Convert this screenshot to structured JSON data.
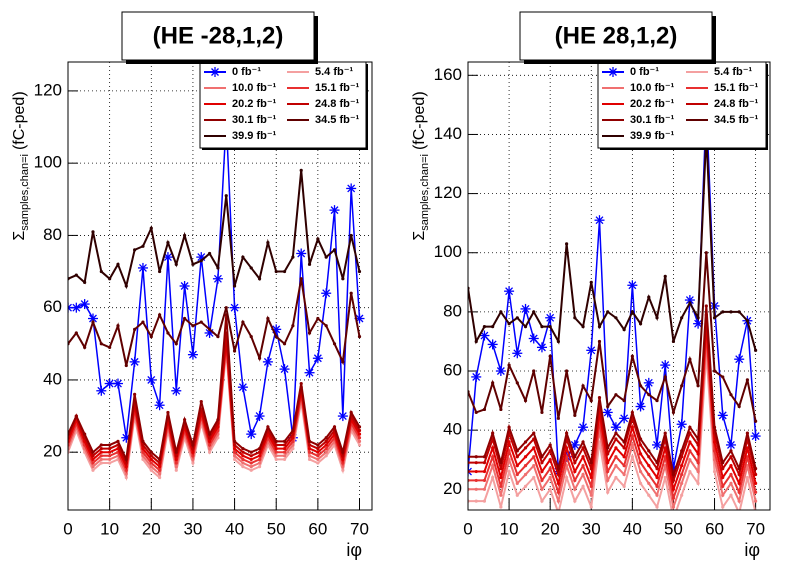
{
  "chart_data": [
    {
      "type": "line",
      "title": "(HE -28,1,2)",
      "ylabel": {
        "symbol": "Σ",
        "sub": "samples,chan=i",
        "unit": "(fC-ped)"
      },
      "xlabel": "iφ",
      "xlim": [
        0,
        73
      ],
      "ylim": [
        4,
        128
      ],
      "xticks": [
        0,
        10,
        20,
        30,
        40,
        50,
        60,
        70
      ],
      "yticks": [
        20,
        40,
        60,
        80,
        100,
        120
      ],
      "grid": true,
      "legend": "top-right",
      "x": [
        0,
        2,
        4,
        6,
        8,
        10,
        12,
        14,
        16,
        18,
        20,
        22,
        24,
        26,
        28,
        30,
        32,
        34,
        36,
        38,
        40,
        42,
        44,
        46,
        48,
        50,
        52,
        54,
        56,
        58,
        60,
        62,
        64,
        66,
        68,
        70
      ],
      "series": [
        {
          "name": "0 fb⁻¹",
          "color": "#0000ff",
          "values": [
            60,
            60,
            61,
            57,
            37,
            39,
            39,
            24,
            45,
            71,
            40,
            33,
            74,
            37,
            66,
            47,
            74,
            53,
            68,
            112,
            60,
            38,
            25,
            30,
            45,
            54,
            43,
            24,
            75,
            42,
            46,
            64,
            87,
            30,
            93,
            57
          ]
        },
        {
          "name": "5.4 fb⁻¹",
          "color": "#f4a0a0",
          "values": [
            20,
            26,
            20,
            15,
            17,
            17,
            18,
            13,
            30,
            18,
            15,
            13,
            26,
            15,
            24,
            17,
            28,
            20,
            24,
            48,
            18,
            16,
            15,
            16,
            22,
            18,
            18,
            21,
            34,
            18,
            17,
            19,
            22,
            15,
            26,
            22
          ]
        },
        {
          "name": "10.0 fb⁻¹",
          "color": "#f07070",
          "values": [
            21,
            27,
            21,
            16,
            18,
            18,
            19,
            14,
            31,
            19,
            16,
            14,
            27,
            16,
            25,
            18,
            29,
            21,
            25,
            49,
            19,
            17,
            16,
            17,
            23,
            19,
            19,
            22,
            35,
            19,
            18,
            20,
            23,
            16,
            27,
            23
          ]
        },
        {
          "name": "15.1 fb⁻¹",
          "color": "#e83030",
          "values": [
            22,
            28,
            22,
            17,
            19,
            19,
            20,
            15,
            32,
            20,
            17,
            15,
            28,
            17,
            26,
            19,
            30,
            22,
            26,
            50,
            20,
            18,
            17,
            18,
            24,
            20,
            20,
            23,
            36,
            20,
            19,
            21,
            24,
            17,
            28,
            24
          ]
        },
        {
          "name": "20.2 fb⁻¹",
          "color": "#e00000",
          "values": [
            23,
            29,
            23,
            18,
            20,
            20,
            21,
            16,
            33,
            21,
            18,
            16,
            29,
            18,
            27,
            20,
            31,
            23,
            27,
            51,
            21,
            19,
            18,
            19,
            25,
            21,
            21,
            24,
            37,
            21,
            20,
            22,
            25,
            18,
            29,
            25
          ]
        },
        {
          "name": "24.8 fb⁻¹",
          "color": "#c00000",
          "values": [
            24,
            30,
            24,
            19,
            21,
            21,
            22,
            17,
            34,
            22,
            19,
            17,
            30,
            19,
            28,
            21,
            32,
            24,
            28,
            53,
            22,
            20,
            19,
            20,
            26,
            22,
            22,
            25,
            38,
            22,
            21,
            23,
            26,
            19,
            30,
            26
          ]
        },
        {
          "name": "30.1 fb⁻¹",
          "color": "#900000",
          "values": [
            25,
            30,
            25,
            20,
            22,
            22,
            23,
            18,
            36,
            23,
            20,
            18,
            31,
            20,
            29,
            22,
            34,
            25,
            29,
            58,
            23,
            21,
            20,
            21,
            27,
            23,
            23,
            26,
            39,
            23,
            22,
            24,
            27,
            20,
            31,
            27
          ]
        },
        {
          "name": "34.5 fb⁻¹",
          "color": "#600000",
          "values": [
            50,
            53,
            49,
            56,
            50,
            49,
            55,
            44,
            54,
            56,
            52,
            58,
            53,
            50,
            57,
            55,
            56,
            54,
            52,
            60,
            48,
            56,
            52,
            46,
            57,
            52,
            50,
            55,
            68,
            53,
            57,
            55,
            50,
            45,
            64,
            52
          ]
        },
        {
          "name": "39.9 fb⁻¹",
          "color": "#300000",
          "values": [
            68,
            69,
            67,
            81,
            70,
            68,
            72,
            66,
            76,
            77,
            82,
            70,
            78,
            72,
            80,
            72,
            73,
            75,
            71,
            91,
            66,
            74,
            71,
            68,
            78,
            70,
            70,
            74,
            98,
            72,
            79,
            74,
            76,
            68,
            80,
            70
          ]
        }
      ]
    },
    {
      "type": "line",
      "title": "(HE 28,1,2)",
      "ylabel": {
        "symbol": "Σ",
        "sub": "samples,chan=i",
        "unit": "(fC-ped)"
      },
      "xlabel": "iφ",
      "xlim": [
        0,
        73.5
      ],
      "ylim": [
        13,
        164.5
      ],
      "xticks": [
        0,
        10,
        20,
        30,
        40,
        50,
        60,
        70
      ],
      "yticks": [
        20,
        40,
        60,
        80,
        100,
        120,
        140,
        160
      ],
      "grid": true,
      "legend": "top-right",
      "x": [
        0,
        2,
        4,
        6,
        8,
        10,
        12,
        14,
        16,
        18,
        20,
        22,
        24,
        26,
        28,
        30,
        32,
        34,
        36,
        38,
        40,
        42,
        44,
        46,
        48,
        50,
        52,
        54,
        56,
        58,
        60,
        62,
        64,
        66,
        68,
        70
      ],
      "series": [
        {
          "name": "0 fb⁻¹",
          "color": "#0000ff",
          "values": [
            26,
            58,
            72,
            69,
            60,
            87,
            66,
            81,
            71,
            68,
            78,
            26,
            31,
            35,
            41,
            67,
            111,
            46,
            41,
            44,
            89,
            48,
            56,
            35,
            62,
            27,
            42,
            84,
            76,
            150,
            82,
            45,
            35,
            64,
            77,
            38
          ]
        },
        {
          "name": "5.4 fb⁻¹",
          "color": "#f4a0a0",
          "values": [
            16,
            16,
            16,
            24,
            14,
            26,
            18,
            21,
            24,
            16,
            20,
            12,
            24,
            16,
            21,
            14,
            36,
            19,
            24,
            21,
            31,
            22,
            18,
            14,
            24,
            10,
            18,
            26,
            22,
            66,
            26,
            14,
            18,
            12,
            24,
            12
          ]
        },
        {
          "name": "10.0 fb⁻¹",
          "color": "#f07070",
          "values": [
            20,
            20,
            20,
            28,
            18,
            30,
            22,
            25,
            28,
            20,
            24,
            16,
            28,
            20,
            25,
            18,
            40,
            23,
            28,
            25,
            35,
            26,
            22,
            18,
            28,
            14,
            22,
            30,
            26,
            70,
            30,
            18,
            22,
            16,
            28,
            16
          ]
        },
        {
          "name": "15.1 fb⁻¹",
          "color": "#e83030",
          "values": [
            23,
            23,
            23,
            31,
            21,
            33,
            25,
            28,
            31,
            23,
            27,
            19,
            31,
            23,
            28,
            21,
            43,
            26,
            31,
            28,
            38,
            29,
            25,
            21,
            31,
            17,
            25,
            33,
            29,
            73,
            33,
            21,
            25,
            19,
            31,
            19
          ]
        },
        {
          "name": "20.2 fb⁻¹",
          "color": "#e00000",
          "values": [
            26,
            26,
            26,
            34,
            24,
            36,
            28,
            31,
            34,
            26,
            30,
            22,
            34,
            26,
            31,
            24,
            46,
            29,
            34,
            31,
            41,
            32,
            28,
            24,
            34,
            20,
            28,
            36,
            32,
            76,
            36,
            24,
            28,
            22,
            34,
            22
          ]
        },
        {
          "name": "24.8 fb⁻¹",
          "color": "#c00000",
          "values": [
            29,
            29,
            29,
            37,
            27,
            39,
            31,
            34,
            37,
            29,
            33,
            25,
            37,
            29,
            34,
            27,
            49,
            32,
            37,
            34,
            44,
            35,
            31,
            27,
            37,
            23,
            31,
            39,
            35,
            79,
            39,
            27,
            31,
            25,
            37,
            25
          ]
        },
        {
          "name": "30.1 fb⁻¹",
          "color": "#900000",
          "values": [
            31,
            31,
            31,
            39,
            29,
            41,
            33,
            36,
            39,
            31,
            35,
            27,
            39,
            31,
            36,
            29,
            51,
            34,
            39,
            36,
            46,
            37,
            33,
            29,
            39,
            25,
            33,
            41,
            37,
            82,
            41,
            29,
            33,
            27,
            39,
            27
          ]
        },
        {
          "name": "34.5 fb⁻¹",
          "color": "#600000",
          "values": [
            53,
            46,
            47,
            56,
            47,
            62,
            56,
            50,
            60,
            46,
            65,
            44,
            60,
            45,
            55,
            50,
            70,
            48,
            52,
            50,
            65,
            55,
            52,
            50,
            58,
            46,
            55,
            64,
            55,
            100,
            60,
            58,
            52,
            48,
            57,
            43
          ]
        },
        {
          "name": "39.9 fb⁻¹",
          "color": "#300000",
          "values": [
            88,
            70,
            75,
            75,
            80,
            76,
            78,
            75,
            80,
            75,
            75,
            70,
            103,
            78,
            75,
            90,
            75,
            80,
            78,
            74,
            80,
            76,
            85,
            78,
            92,
            70,
            78,
            83,
            78,
            140,
            78,
            80,
            80,
            80,
            77,
            67
          ]
        }
      ]
    }
  ]
}
